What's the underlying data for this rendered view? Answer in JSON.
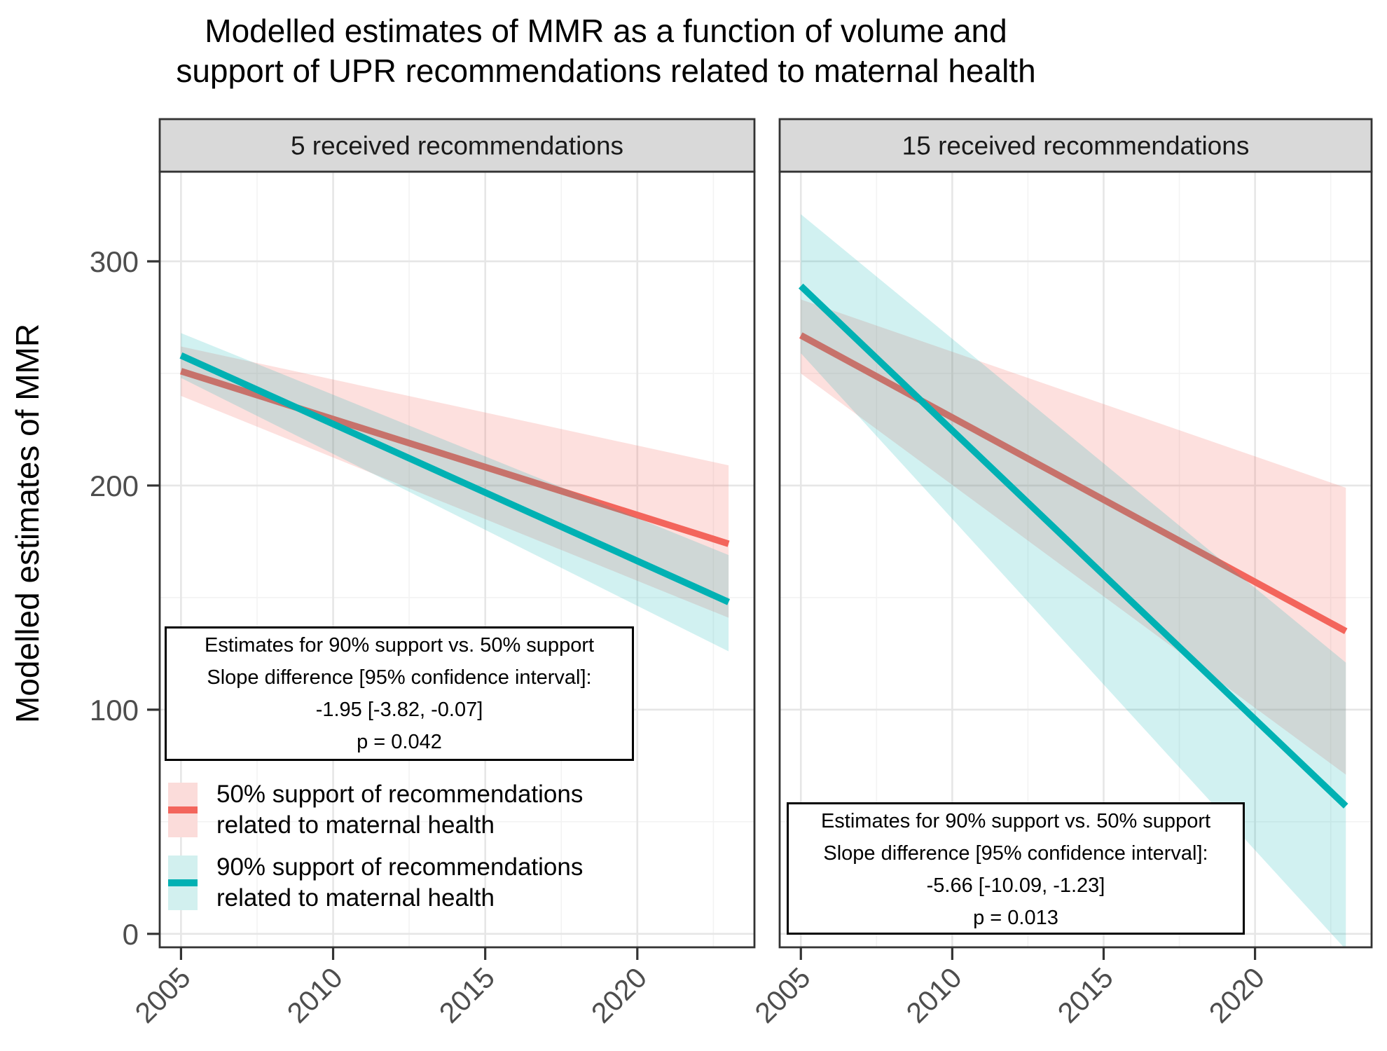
{
  "chart_data": {
    "type": "line",
    "title": "Modelled estimates of MMR as a function of volume and\nsupport of UPR recommendations related to maternal health",
    "y_axis": {
      "label": "Modelled estimates of MMR",
      "ticks": [
        0,
        100,
        200,
        300
      ],
      "minor_ticks": [
        50,
        150,
        250
      ],
      "domain": [
        -6,
        340
      ]
    },
    "x_axis": {
      "ticks": [
        2005,
        2010,
        2015,
        2020
      ],
      "minor_ticks": [
        2007.5,
        2012.5,
        2017.5,
        2022.5
      ],
      "domain": [
        2004.3,
        2023.85
      ]
    },
    "grid": "on",
    "panels": [
      {
        "facet_label": "5 received recommendations",
        "annotation": [
          "Estimates for 90% support vs. 50% support",
          "Slope difference [95% confidence interval]:",
          "-1.95 [-3.82, -0.07]",
          "p = 0.042"
        ],
        "series": [
          {
            "key": "support50",
            "name": "50% support of recommendations related to maternal health",
            "x": [
              2005,
              2023
            ],
            "y": [
              251,
              174
            ],
            "ci_lower": [
              240,
              141
            ],
            "ci_upper": [
              262,
              209
            ]
          },
          {
            "key": "support90",
            "name": "90% support of recommendations related to maternal health",
            "x": [
              2005,
              2023
            ],
            "y": [
              258,
              148
            ],
            "ci_lower": [
              248,
              126
            ],
            "ci_upper": [
              268,
              169
            ]
          }
        ]
      },
      {
        "facet_label": "15 received recommendations",
        "annotation": [
          "Estimates for 90% support vs. 50% support",
          "Slope difference [95% confidence interval]:",
          "-5.66 [-10.09, -1.23]",
          "p = 0.013"
        ],
        "series": [
          {
            "key": "support50",
            "name": "50% support of recommendations related to maternal health",
            "x": [
              2005,
              2023
            ],
            "y": [
              267,
              135
            ],
            "ci_lower": [
              250,
              71
            ],
            "ci_upper": [
              283,
              199
            ]
          },
          {
            "key": "support90",
            "name": "90% support of recommendations related to maternal health",
            "x": [
              2005,
              2023
            ],
            "y": [
              289,
              57
            ],
            "ci_lower": [
              259,
              -7
            ],
            "ci_upper": [
              321,
              121
            ]
          }
        ]
      }
    ],
    "legend": {
      "position": "inside-left-panel-bottom",
      "items": [
        {
          "key": "support50",
          "label": "50% support of recommendations\nrelated to maternal health"
        },
        {
          "key": "support90",
          "label": "90% support of recommendations\nrelated to maternal health"
        }
      ]
    },
    "colors": {
      "support50_line": "#f3655c",
      "support50_ribbon": "rgba(244,100,92,0.20)",
      "support50_swatch": "#fbdcda",
      "support90_line": "#00b1b3",
      "support90_ribbon": "rgba(0,177,178,0.18)",
      "support90_swatch": "#d2f0ef",
      "facet_strip_bg": "#d9d9d9",
      "panel_border": "#333333",
      "grid_major": "#e6e6e6",
      "grid_minor": "#f3f3f3",
      "axis_text": "#4d4d4d",
      "facet_text": "#1a1a1a",
      "title_text": "#000000"
    }
  }
}
